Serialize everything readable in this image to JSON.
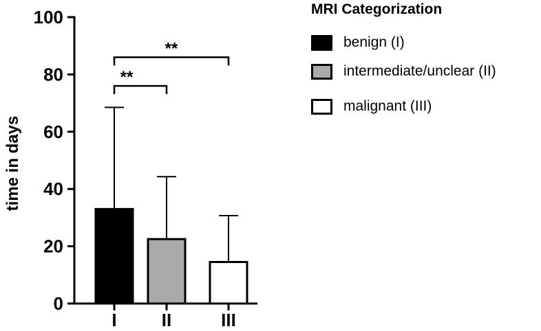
{
  "chart_data": {
    "type": "bar",
    "categories": [
      "I",
      "II",
      "III"
    ],
    "values": [
      33,
      22.5,
      14.5
    ],
    "error_upper": [
      68.5,
      44.3,
      30.7
    ],
    "colors": [
      "#000000",
      "#aaaaaa",
      "#ffffff"
    ],
    "ylabel": "time in days",
    "ylim": [
      0,
      100
    ],
    "yticks": [
      0,
      20,
      40,
      60,
      80,
      100
    ],
    "grid": false,
    "legend": {
      "title": "MRI Categorization",
      "placement": "top-right",
      "entries": [
        {
          "label": "benign (I)",
          "color": "#000000"
        },
        {
          "label": "intermediate/unclear (II)",
          "color": "#aaaaaa"
        },
        {
          "label": "malignant (III)",
          "color": "#ffffff"
        }
      ]
    },
    "annotations": [
      {
        "from": "I",
        "to": "II",
        "label": "**",
        "y": 76
      },
      {
        "from": "I",
        "to": "III",
        "label": "**",
        "y": 86
      }
    ]
  }
}
